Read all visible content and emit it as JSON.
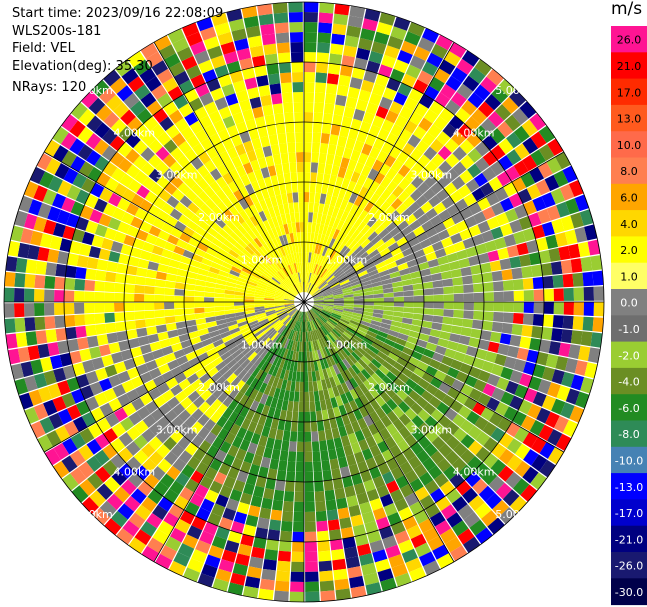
{
  "info": {
    "start_time": "Start time: 2023/09/16 22:08:09",
    "station": "WLS200s-181",
    "field": "Field: VEL",
    "elevation": "Elevation(deg): 35.30",
    "nrays": "NRays: 120"
  },
  "chart_data": {
    "type": "ppi",
    "field": "VEL",
    "units": "m/s",
    "range_rings_km": [
      "1.00km",
      "2.00km",
      "3.00km",
      "4.00km",
      "5.00km"
    ],
    "colorbar": {
      "title": "m/s",
      "labels": [
        "26.0",
        "21.0",
        "17.0",
        "13.0",
        "10.0",
        "8.0",
        "6.0",
        "4.0",
        "2.0",
        "1.0",
        "0.0",
        "-1.0",
        "-2.0",
        "-4.0",
        "-6.0",
        "-8.0",
        "-10.0",
        "-13.0",
        "-17.0",
        "-21.0",
        "-26.0",
        "-30.0"
      ],
      "colors": [
        "#ff1493",
        "#ff0000",
        "#ff2b00",
        "#ff5a1e",
        "#ff6a4a",
        "#ff7f50",
        "#ffa500",
        "#ffd700",
        "#ffff00",
        "#ffff66",
        "#808080",
        "#6e6e6e",
        "#9acd32",
        "#6b8e23",
        "#228b22",
        "#2e8b57",
        "#4682b4",
        "#0000ff",
        "#0000cd",
        "#000080",
        "#191970",
        "#00004a"
      ]
    },
    "rays": 120
  }
}
